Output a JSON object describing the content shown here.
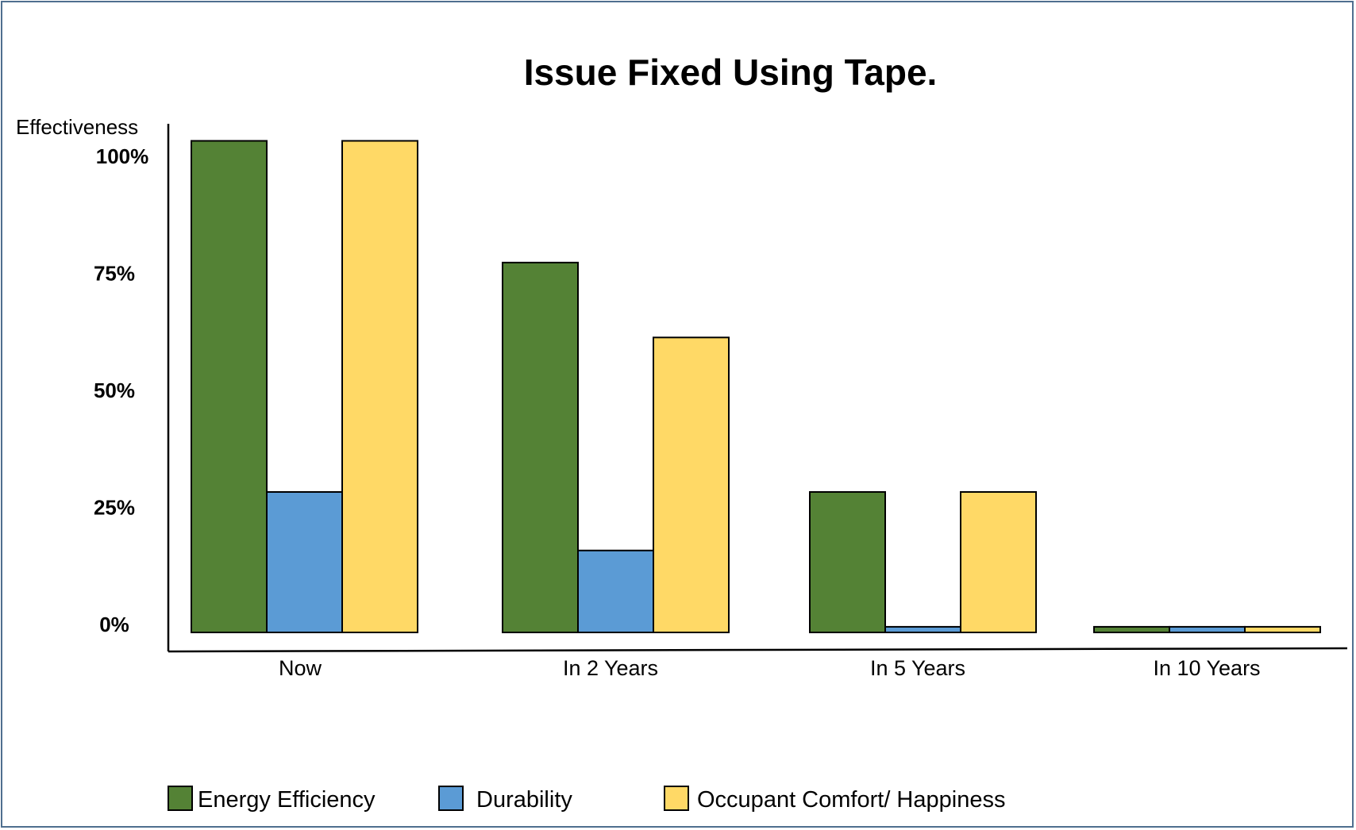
{
  "chart_data": {
    "type": "bar",
    "title": "Issue Fixed Using Tape.",
    "ylabel": "Effectiveness",
    "xlabel": "",
    "ylim": [
      0,
      100
    ],
    "yticks": [
      "100%",
      "75%",
      "50%",
      "25%",
      "0%"
    ],
    "ytick_values": [
      100,
      75,
      50,
      25,
      0
    ],
    "categories": [
      "Now",
      "In 2 Years",
      "In 5 Years",
      "In 10 Years"
    ],
    "series": [
      {
        "name": "Energy Efficiency",
        "color": "#548235",
        "values": [
          105,
          79,
          30,
          1.2
        ]
      },
      {
        "name": "Durability",
        "color": "#5b9bd5",
        "values": [
          30,
          17.5,
          1.2,
          1.2
        ]
      },
      {
        "name": "Occupant Comfort/ Happiness",
        "color": "#ffd966",
        "values": [
          105,
          63,
          30,
          1.2
        ]
      }
    ],
    "legend_position": "bottom",
    "grid": false
  }
}
